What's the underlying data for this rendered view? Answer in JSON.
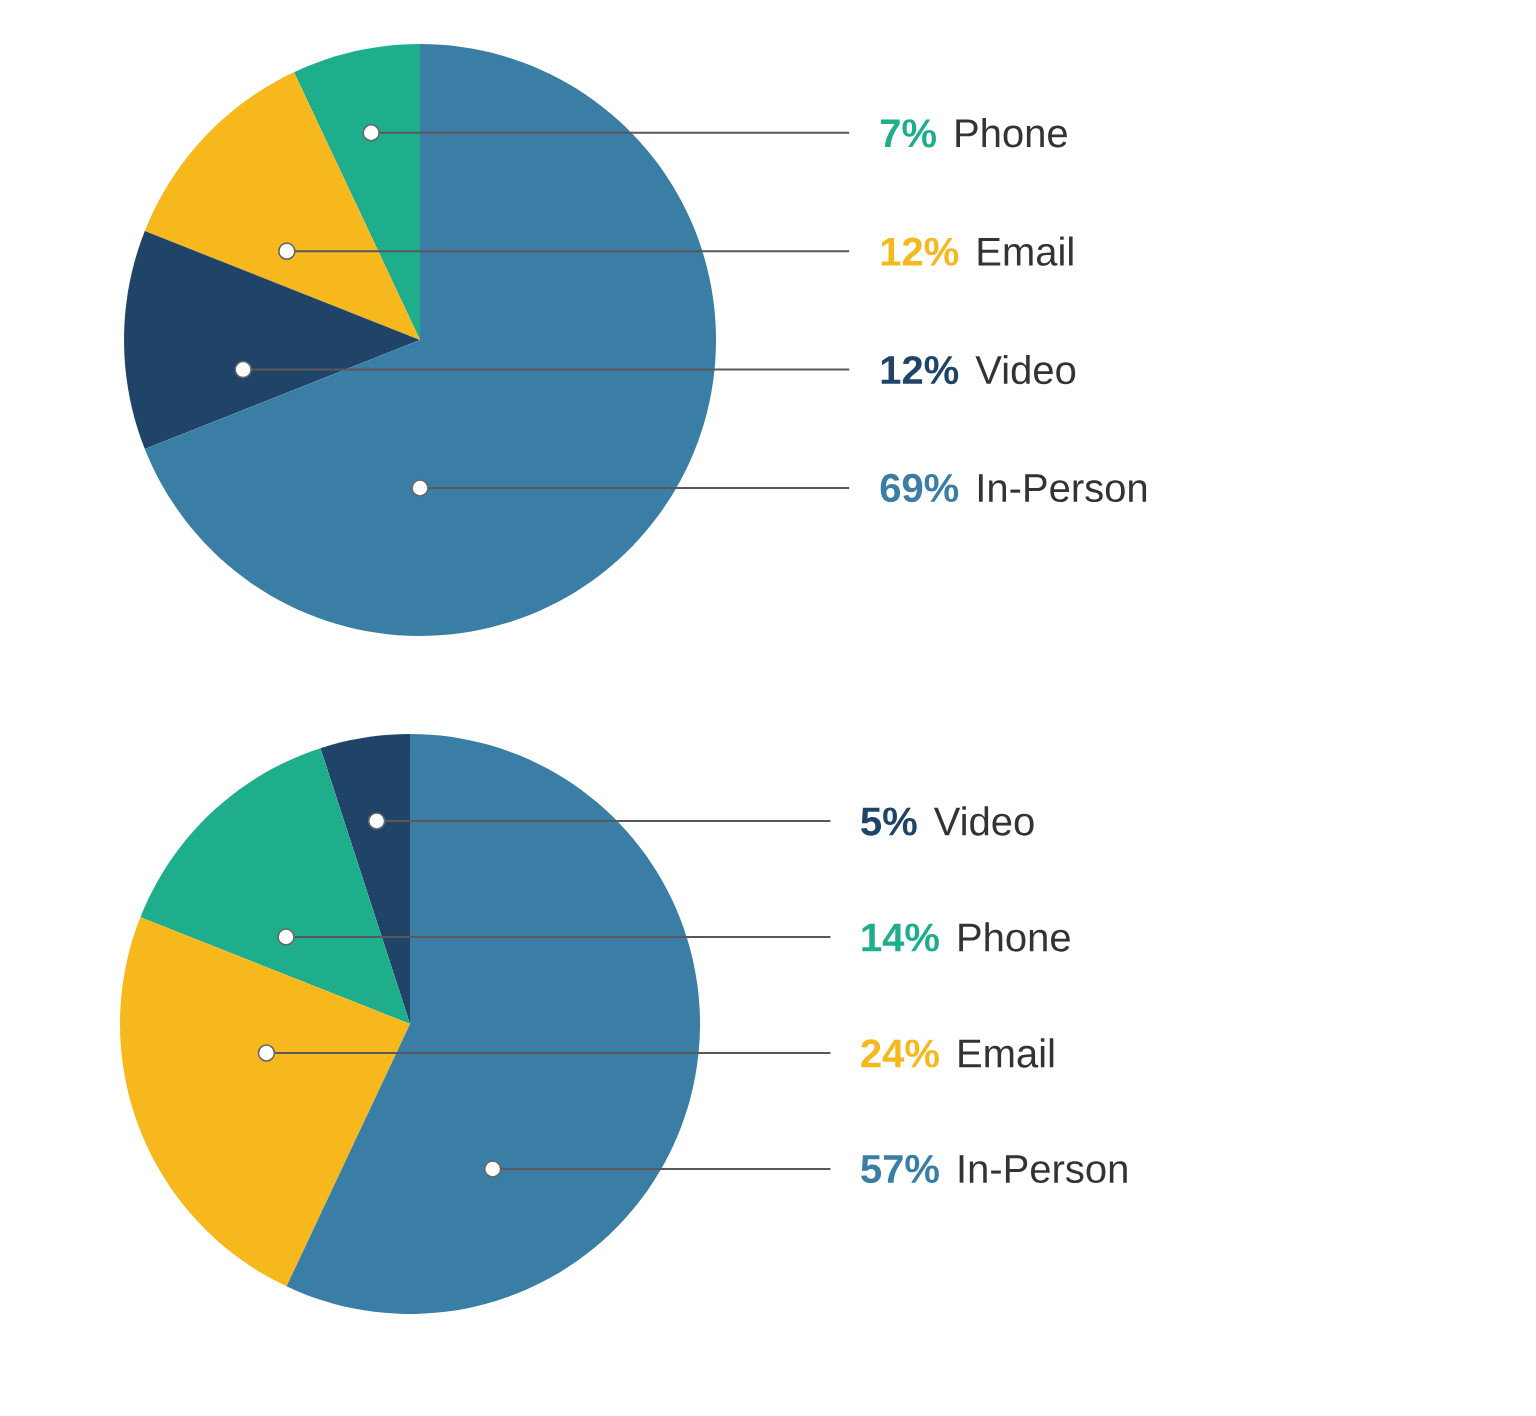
{
  "chart_data": [
    {
      "type": "pie",
      "categories": [
        "Phone",
        "Email",
        "Video",
        "In-Person"
      ],
      "values": [
        7,
        12,
        12,
        69
      ],
      "value_labels": [
        "7%",
        "12%",
        "12%",
        "69%"
      ],
      "colors": [
        "#1fae8c",
        "#f7b81d",
        "#1f4467",
        "#3a7ea5"
      ]
    },
    {
      "type": "pie",
      "categories": [
        "Video",
        "Phone",
        "Email",
        "In-Person"
      ],
      "values": [
        5,
        14,
        24,
        57
      ],
      "value_labels": [
        "5%",
        "14%",
        "24%",
        "57%"
      ],
      "colors": [
        "#1f4467",
        "#1fae8c",
        "#f7b81d",
        "#3a7ea5"
      ]
    }
  ]
}
